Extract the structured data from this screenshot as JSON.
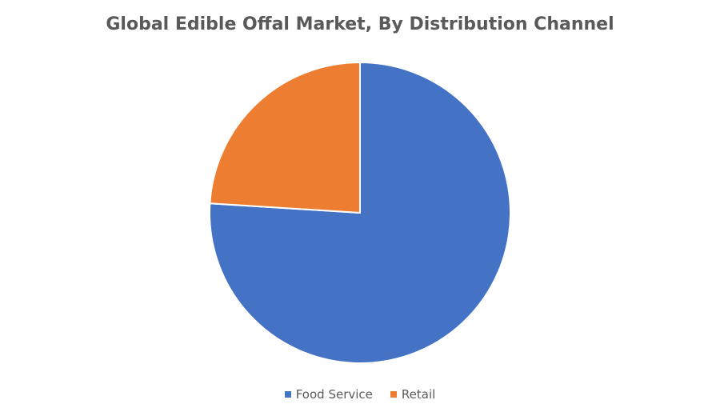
{
  "chart_data": {
    "type": "pie",
    "title": "Global Edible Offal Market, By Distribution Channel",
    "categories": [
      "Food Service",
      "Retail"
    ],
    "values": [
      76,
      24
    ],
    "colors": [
      "#4472C4",
      "#ED7D31"
    ],
    "legend_position": "bottom"
  },
  "legend": {
    "items": [
      {
        "label": "Food Service",
        "color": "#4472C4"
      },
      {
        "label": "Retail",
        "color": "#ED7D31"
      }
    ]
  }
}
